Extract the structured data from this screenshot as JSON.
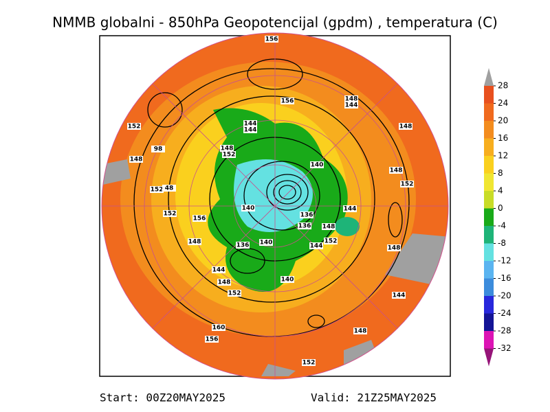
{
  "header": {
    "title": "NMMB globalni - 850hPa Geopotencijal (gpdm) , temperatura (C)"
  },
  "footer": {
    "start": "Start: 00Z20MAY2025",
    "valid": "Valid: 21Z25MAY2025"
  },
  "colorbar": {
    "ticks": [
      28,
      24,
      20,
      16,
      12,
      8,
      4,
      0,
      -4,
      -8,
      -12,
      -16,
      -20,
      -24,
      -28,
      -32
    ],
    "colors": [
      "#e8501e",
      "#f06a1e",
      "#f38c1e",
      "#f7ae1e",
      "#fad01e",
      "#f0e632",
      "#c8dc28",
      "#19aa19",
      "#1eb478",
      "#64e1e1",
      "#5ab4f0",
      "#3c8cdc",
      "#2828dc",
      "#141496",
      "#dc14b4"
    ],
    "over_color": "#a0a0a0",
    "under_color": "#961478"
  },
  "map": {
    "contour_labels": [
      "156",
      "156",
      "148",
      "144",
      "148",
      "152",
      "144",
      "144",
      "148",
      "152",
      "148",
      "98",
      "140",
      "148",
      "152",
      "152",
      "48",
      "152",
      "156",
      "140",
      "136",
      "136",
      "148",
      "144",
      "148",
      "136",
      "140",
      "144",
      "152",
      "148",
      "144",
      "148",
      "152",
      "140",
      "144",
      "160",
      "156",
      "148",
      "152"
    ]
  }
}
